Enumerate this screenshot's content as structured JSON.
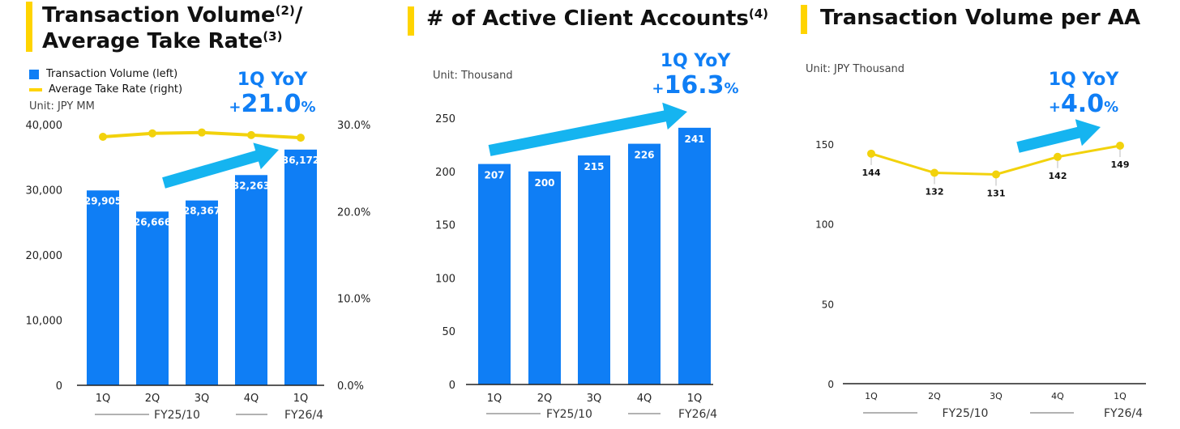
{
  "colors": {
    "accent": "#ffd400",
    "bar": "#0f7ef5",
    "arrow": "#15b4f0",
    "line": "#f2d20c",
    "yoy": "#0f7ef5"
  },
  "panel1": {
    "title_main": "Transaction Volume",
    "title_sup1": "(2)",
    "title_sep": "/",
    "title_line2": "Average Take Rate",
    "title_sup2": "(3)",
    "legend_bar": "Transaction Volume (left)",
    "legend_line": "Average Take Rate (right)",
    "unit": "Unit: JPY MM",
    "yoy_label": "1Q YoY",
    "yoy_sign": "+",
    "yoy_value": "21.0",
    "yoy_pct": "%",
    "arrow_icon": "growth-arrow-icon"
  },
  "panel2": {
    "title_main": "# of Active Client Accounts",
    "title_sup": "(4)",
    "unit": "Unit: Thousand",
    "yoy_label": "1Q YoY",
    "yoy_sign": "+",
    "yoy_value": "16.3",
    "yoy_pct": "%",
    "arrow_icon": "growth-arrow-icon"
  },
  "panel3": {
    "title_main": "Transaction Volume per AA",
    "unit": "Unit: JPY Thousand",
    "yoy_label": "1Q YoY",
    "yoy_sign": "+",
    "yoy_value": "4.0",
    "yoy_pct": "%",
    "arrow_icon": "growth-arrow-icon"
  },
  "chart_data": [
    {
      "type": "bar",
      "title": "Transaction Volume(2)/ Average Take Rate(3)",
      "categories": [
        "1Q",
        "2Q",
        "3Q",
        "4Q",
        "1Q"
      ],
      "fiscal_groups": [
        {
          "label": "FY25/10",
          "span": [
            0,
            3
          ]
        },
        {
          "label": "FY26/4",
          "span": [
            4,
            4
          ]
        }
      ],
      "series": [
        {
          "name": "Transaction Volume (left)",
          "type": "bar",
          "axis": "left",
          "values": [
            29905,
            26666,
            28367,
            32263,
            36172
          ],
          "labels": [
            "29,905",
            "26,666",
            "28,367",
            "32,263",
            "36,172"
          ]
        },
        {
          "name": "Average Take Rate (right)",
          "type": "line",
          "axis": "right",
          "values": [
            28.6,
            29.0,
            29.1,
            28.8,
            28.5
          ]
        }
      ],
      "ylim": [
        0,
        40000
      ],
      "yticks": [
        0,
        10000,
        20000,
        30000,
        40000
      ],
      "ytick_labels": [
        "0",
        "10,000",
        "20,000",
        "30,000",
        "40,000"
      ],
      "y2lim": [
        0,
        30
      ],
      "y2ticks": [
        0,
        10,
        20,
        30
      ],
      "y2tick_labels": [
        "0.0%",
        "10.0%",
        "20.0%",
        "30.0%"
      ],
      "ylabel": "Unit: JPY MM",
      "legend": "top-left"
    },
    {
      "type": "bar",
      "title": "# of Active Client Accounts(4)",
      "categories": [
        "1Q",
        "2Q",
        "3Q",
        "4Q",
        "1Q"
      ],
      "fiscal_groups": [
        {
          "label": "FY25/10",
          "span": [
            0,
            3
          ]
        },
        {
          "label": "FY26/4",
          "span": [
            4,
            4
          ]
        }
      ],
      "series": [
        {
          "name": "Active Client Accounts",
          "values": [
            207,
            200,
            215,
            226,
            241
          ],
          "labels": [
            "207",
            "200",
            "215",
            "226",
            "241"
          ]
        }
      ],
      "ylim": [
        0,
        250
      ],
      "yticks": [
        0,
        50,
        100,
        150,
        200,
        250
      ],
      "ytick_labels": [
        "0",
        "50",
        "100",
        "150",
        "200",
        "250"
      ],
      "ylabel": "Unit: Thousand"
    },
    {
      "type": "line",
      "title": "Transaction Volume per AA",
      "categories": [
        "1Q",
        "2Q",
        "3Q",
        "4Q",
        "1Q"
      ],
      "fiscal_groups": [
        {
          "label": "FY25/10",
          "span": [
            0,
            3
          ]
        },
        {
          "label": "FY26/4",
          "span": [
            4,
            4
          ]
        }
      ],
      "series": [
        {
          "name": "Transaction Volume per AA",
          "values": [
            144,
            132,
            131,
            142,
            149
          ],
          "labels": [
            "144",
            "132",
            "131",
            "142",
            "149"
          ]
        }
      ],
      "ylim": [
        0,
        150
      ],
      "yticks": [
        0,
        50,
        100,
        150
      ],
      "ytick_labels": [
        "0",
        "50",
        "100",
        "150"
      ],
      "ylabel": "Unit: JPY Thousand"
    }
  ]
}
